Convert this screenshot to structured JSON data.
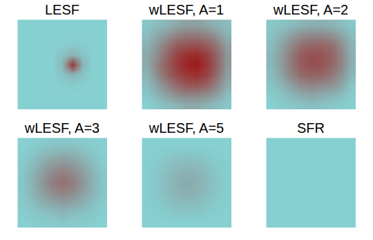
{
  "chart_data": [
    {
      "type": "heatmap",
      "title": "LESF",
      "tick_labels": false,
      "zlim": [
        0,
        1
      ],
      "colors": [
        "#86dadc",
        "#9e1a1a"
      ],
      "cells": [
        [
          0.05,
          0.05,
          0.05,
          0.05,
          0.05,
          0.05,
          0.05,
          0.05,
          0.05
        ],
        [
          0.05,
          0.05,
          0.05,
          0.05,
          0.05,
          0.05,
          0.05,
          0.05,
          0.05
        ],
        [
          0.05,
          0.05,
          0.05,
          0.05,
          0.06,
          0.08,
          0.06,
          0.05,
          0.05
        ],
        [
          0.05,
          0.05,
          0.05,
          0.05,
          0.12,
          0.2,
          0.12,
          0.05,
          0.05
        ],
        [
          0.05,
          0.05,
          0.05,
          0.05,
          0.2,
          0.85,
          0.2,
          0.05,
          0.05
        ],
        [
          0.05,
          0.05,
          0.05,
          0.05,
          0.12,
          0.2,
          0.12,
          0.05,
          0.05
        ],
        [
          0.05,
          0.05,
          0.05,
          0.05,
          0.06,
          0.08,
          0.06,
          0.05,
          0.05
        ],
        [
          0.05,
          0.05,
          0.05,
          0.05,
          0.05,
          0.05,
          0.05,
          0.05,
          0.05
        ],
        [
          0.05,
          0.05,
          0.05,
          0.05,
          0.05,
          0.05,
          0.05,
          0.05,
          0.05
        ]
      ]
    },
    {
      "type": "heatmap",
      "title": "wLESF, A=1",
      "tick_labels": false,
      "zlim": [
        0,
        1
      ],
      "colors": [
        "#86dadc",
        "#9e1a1a"
      ],
      "cells": [
        [
          0.1,
          0.15,
          0.2,
          0.25,
          0.3,
          0.3,
          0.25,
          0.2,
          0.15
        ],
        [
          0.15,
          0.25,
          0.35,
          0.45,
          0.5,
          0.5,
          0.45,
          0.35,
          0.2
        ],
        [
          0.2,
          0.35,
          0.5,
          0.65,
          0.7,
          0.72,
          0.65,
          0.5,
          0.3
        ],
        [
          0.25,
          0.4,
          0.6,
          0.78,
          0.88,
          0.9,
          0.8,
          0.6,
          0.35
        ],
        [
          0.25,
          0.45,
          0.65,
          0.82,
          0.95,
          1,
          0.85,
          0.62,
          0.35
        ],
        [
          0.2,
          0.4,
          0.6,
          0.75,
          0.85,
          0.88,
          0.78,
          0.58,
          0.3
        ],
        [
          0.15,
          0.3,
          0.45,
          0.6,
          0.68,
          0.7,
          0.62,
          0.45,
          0.25
        ],
        [
          0.1,
          0.2,
          0.3,
          0.4,
          0.45,
          0.45,
          0.4,
          0.3,
          0.15
        ],
        [
          0.05,
          0.1,
          0.15,
          0.2,
          0.25,
          0.25,
          0.2,
          0.15,
          0.1
        ]
      ]
    },
    {
      "type": "heatmap",
      "title": "wLESF, A=2",
      "tick_labels": false,
      "zlim": [
        0,
        1
      ],
      "colors": [
        "#86dadc",
        "#9e1a1a"
      ],
      "cells": [
        [
          0.1,
          0.12,
          0.15,
          0.2,
          0.22,
          0.22,
          0.2,
          0.15,
          0.1
        ],
        [
          0.12,
          0.2,
          0.3,
          0.38,
          0.42,
          0.42,
          0.38,
          0.28,
          0.15
        ],
        [
          0.15,
          0.28,
          0.42,
          0.55,
          0.6,
          0.6,
          0.55,
          0.4,
          0.2
        ],
        [
          0.18,
          0.32,
          0.5,
          0.65,
          0.72,
          0.7,
          0.62,
          0.45,
          0.22
        ],
        [
          0.18,
          0.32,
          0.5,
          0.65,
          0.72,
          0.7,
          0.6,
          0.45,
          0.22
        ],
        [
          0.15,
          0.28,
          0.45,
          0.58,
          0.62,
          0.6,
          0.52,
          0.38,
          0.18
        ],
        [
          0.12,
          0.2,
          0.32,
          0.42,
          0.45,
          0.42,
          0.38,
          0.28,
          0.12
        ],
        [
          0.08,
          0.12,
          0.18,
          0.25,
          0.28,
          0.25,
          0.22,
          0.15,
          0.08
        ],
        [
          0.05,
          0.08,
          0.1,
          0.12,
          0.15,
          0.12,
          0.1,
          0.08,
          0.05
        ]
      ]
    },
    {
      "type": "heatmap",
      "title": "wLESF, A=3",
      "tick_labels": false,
      "zlim": [
        0,
        1
      ],
      "colors": [
        "#86dadc",
        "#9e1a1a"
      ],
      "cells": [
        [
          0.05,
          0.06,
          0.08,
          0.1,
          0.1,
          0.1,
          0.08,
          0.06,
          0.05
        ],
        [
          0.06,
          0.1,
          0.15,
          0.2,
          0.22,
          0.2,
          0.15,
          0.1,
          0.06
        ],
        [
          0.08,
          0.15,
          0.25,
          0.32,
          0.35,
          0.32,
          0.25,
          0.15,
          0.08
        ],
        [
          0.1,
          0.2,
          0.32,
          0.42,
          0.48,
          0.42,
          0.32,
          0.2,
          0.1
        ],
        [
          0.1,
          0.22,
          0.35,
          0.48,
          0.55,
          0.48,
          0.35,
          0.22,
          0.1
        ],
        [
          0.1,
          0.2,
          0.3,
          0.4,
          0.45,
          0.4,
          0.3,
          0.2,
          0.1
        ],
        [
          0.08,
          0.14,
          0.22,
          0.28,
          0.3,
          0.28,
          0.22,
          0.14,
          0.08
        ],
        [
          0.06,
          0.1,
          0.12,
          0.15,
          0.18,
          0.15,
          0.12,
          0.1,
          0.06
        ],
        [
          0.05,
          0.06,
          0.08,
          0.08,
          0.1,
          0.08,
          0.08,
          0.06,
          0.05
        ]
      ]
    },
    {
      "type": "heatmap",
      "title": "wLESF, A=5",
      "tick_labels": false,
      "zlim": [
        0,
        1
      ],
      "colors": [
        "#86dadc",
        "#9e1a1a"
      ],
      "cells": [
        [
          0.05,
          0.05,
          0.05,
          0.05,
          0.05,
          0.05,
          0.05,
          0.05,
          0.05
        ],
        [
          0.05,
          0.06,
          0.08,
          0.1,
          0.1,
          0.1,
          0.08,
          0.06,
          0.05
        ],
        [
          0.06,
          0.08,
          0.12,
          0.15,
          0.16,
          0.15,
          0.12,
          0.08,
          0.06
        ],
        [
          0.06,
          0.1,
          0.15,
          0.2,
          0.22,
          0.2,
          0.15,
          0.1,
          0.06
        ],
        [
          0.06,
          0.1,
          0.16,
          0.22,
          0.25,
          0.22,
          0.16,
          0.1,
          0.06
        ],
        [
          0.06,
          0.1,
          0.15,
          0.2,
          0.22,
          0.2,
          0.15,
          0.1,
          0.06
        ],
        [
          0.06,
          0.08,
          0.12,
          0.15,
          0.16,
          0.15,
          0.12,
          0.08,
          0.06
        ],
        [
          0.05,
          0.06,
          0.08,
          0.1,
          0.1,
          0.1,
          0.08,
          0.06,
          0.05
        ],
        [
          0.05,
          0.05,
          0.05,
          0.05,
          0.05,
          0.05,
          0.05,
          0.05,
          0.05
        ]
      ]
    },
    {
      "type": "heatmap",
      "title": "SFR",
      "tick_labels": false,
      "zlim": [
        0,
        1
      ],
      "colors": [
        "#86dadc",
        "#9e1a1a"
      ],
      "cells": [
        [
          0.05,
          0.05,
          0.05,
          0.05,
          0.05,
          0.05,
          0.05,
          0.05,
          0.05
        ],
        [
          0.05,
          0.05,
          0.05,
          0.05,
          0.05,
          0.05,
          0.05,
          0.05,
          0.05
        ],
        [
          0.05,
          0.05,
          0.05,
          0.05,
          0.05,
          0.05,
          0.05,
          0.05,
          0.05
        ],
        [
          0.05,
          0.05,
          0.05,
          0.05,
          0.05,
          0.05,
          0.05,
          0.05,
          0.05
        ],
        [
          0.05,
          0.05,
          0.05,
          0.05,
          0.05,
          0.05,
          0.05,
          0.05,
          0.05
        ],
        [
          0.05,
          0.05,
          0.05,
          0.05,
          0.05,
          0.05,
          0.05,
          0.05,
          0.05
        ],
        [
          0.05,
          0.05,
          0.05,
          0.05,
          0.05,
          0.05,
          0.05,
          0.05,
          0.05
        ],
        [
          0.05,
          0.05,
          0.05,
          0.05,
          0.05,
          0.05,
          0.05,
          0.05,
          0.05
        ],
        [
          0.05,
          0.05,
          0.05,
          0.05,
          0.05,
          0.05,
          0.05,
          0.05,
          0.05
        ]
      ]
    }
  ]
}
